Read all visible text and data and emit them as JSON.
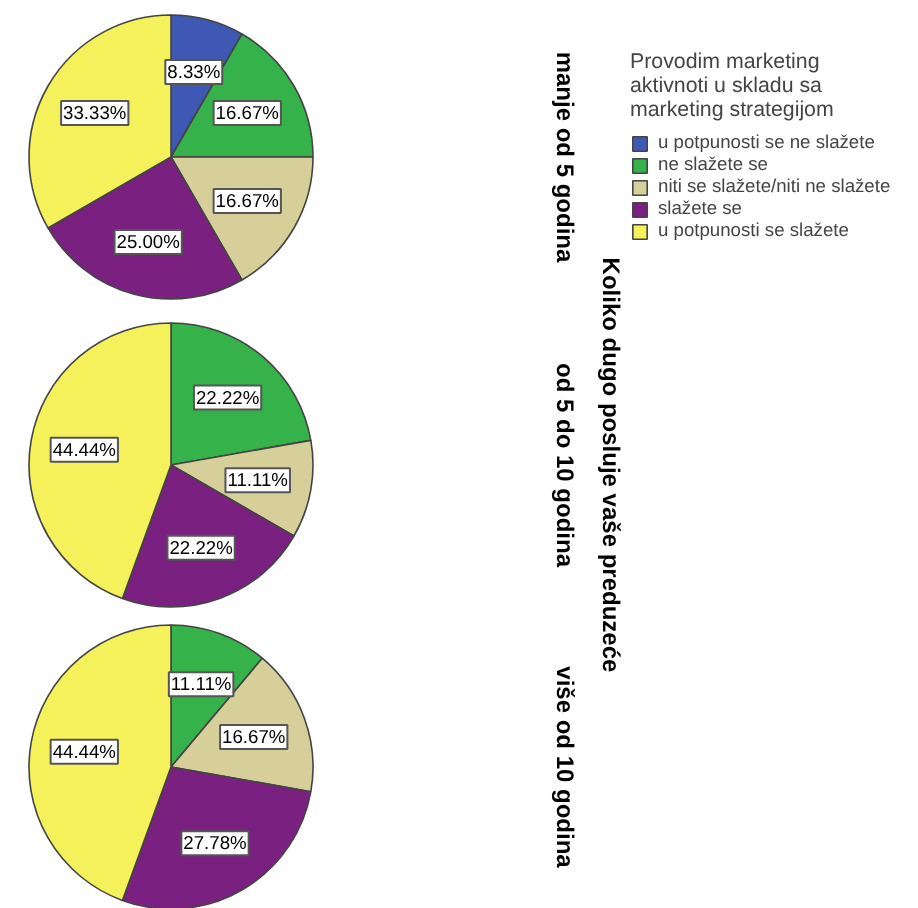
{
  "chart_data": [
    {
      "type": "pie",
      "subtitle": "manje od 5 godina",
      "legend": "right",
      "legend_title": "Provodim marketing\naktivnoti u skladu sa\nmarketing strategijom",
      "categories": [
        "u potpunosti se ne slažete",
        "ne slažete se",
        "niti se slažete/niti ne slažete",
        "slažete se",
        "u potpunosti se slažete"
      ],
      "values": [
        8.33,
        16.67,
        16.67,
        25.0,
        33.33
      ],
      "value_labels": [
        "8.33%",
        "16.67%",
        "16.67%",
        "25.00%",
        "33.33%"
      ],
      "colors": [
        "#3e58b4",
        "#35b34a",
        "#d6cf9a",
        "#7a2080",
        "#f5f15a"
      ]
    },
    {
      "type": "pie",
      "subtitle": "od 5 do 10 godina",
      "annotations": [
        "Koliko dugo posluje vaše preduzeće"
      ],
      "values": [
        22.22,
        11.11,
        22.22,
        44.44
      ],
      "value_labels": [
        "22.22%",
        "11.11%",
        "22.22%",
        "44.44%"
      ],
      "colors": [
        "#35b34a",
        "#d6cf9a",
        "#7a2080",
        "#f5f15a"
      ]
    },
    {
      "type": "pie",
      "subtitle": "više od 10 godina",
      "values": [
        11.11,
        16.67,
        27.78,
        44.44
      ],
      "value_labels": [
        "11.11%",
        "16.67%",
        "27.78%",
        "44.44%"
      ],
      "colors": [
        "#35b34a",
        "#d6cf9a",
        "#7a2080",
        "#f5f15a"
      ]
    }
  ]
}
